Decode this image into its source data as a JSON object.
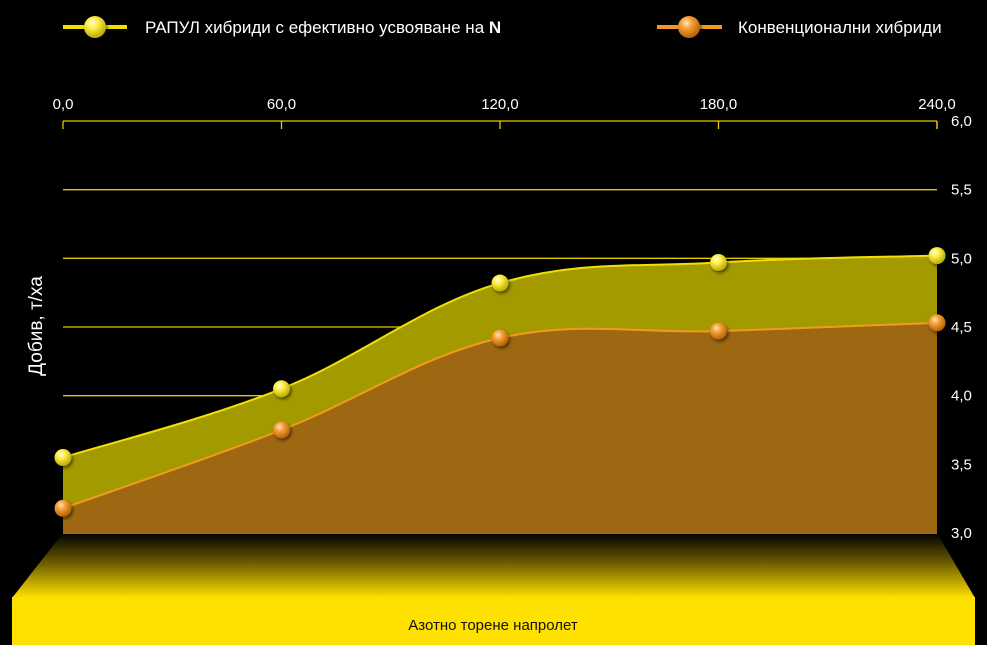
{
  "chart_data": {
    "type": "area",
    "legend_position": "top",
    "series": [
      {
        "name": "РАПУЛ хибриди с ефективно усвояване на",
        "name_bold_suffix": "N",
        "color": "#f2e000",
        "fill": "#a39a00",
        "values": [
          3.55,
          4.05,
          4.82,
          4.97,
          5.02
        ]
      },
      {
        "name": "Конвенционални хибриди",
        "color": "#f39a1e",
        "fill": "#9d6414",
        "values": [
          3.18,
          3.75,
          4.42,
          4.47,
          4.53
        ]
      }
    ],
    "x": [
      0,
      60,
      120,
      180,
      240
    ],
    "x_tick_labels": [
      "0,0",
      "60,0",
      "120,0",
      "180,0",
      "240,0"
    ],
    "xlim": [
      0,
      240
    ],
    "y_tick_labels": [
      "3,0",
      "3,5",
      "4,0",
      "4,5",
      "5,0",
      "5,5",
      "6,0"
    ],
    "y_ticks": [
      3.0,
      3.5,
      4.0,
      4.5,
      5.0,
      5.5,
      6.0
    ],
    "ylim": [
      3.0,
      6.0
    ],
    "ylabel": "Добив, т/ха",
    "xlabel": "Азотно торене напролет",
    "grid": true
  }
}
